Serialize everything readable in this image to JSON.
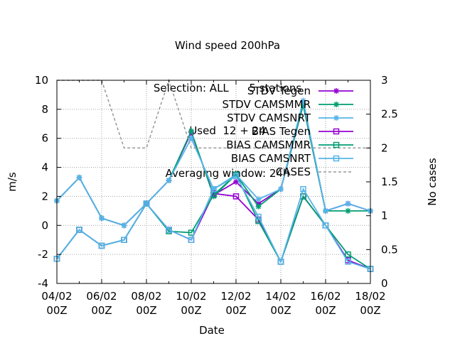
{
  "title_lines": [
    "Wind speed 200hPa",
    "Selection: ALL      5 stations",
    "Used  12 + 24",
    "Averaging window: 24h"
  ],
  "chart_data": {
    "type": "line",
    "xlabel": "Date",
    "ylabel": "m/s",
    "y2label": "No cases",
    "ylim": [
      -4,
      10
    ],
    "y2lim": [
      0,
      3
    ],
    "yticks": [
      -4,
      -2,
      0,
      2,
      4,
      6,
      8,
      10
    ],
    "y2ticks": [
      "0",
      "0.5",
      "1",
      "1.5",
      "2",
      "2.5",
      "3"
    ],
    "xticks": [
      {
        "line1": "04/02",
        "line2": "00Z"
      },
      {
        "line1": "06/02",
        "line2": "00Z"
      },
      {
        "line1": "08/02",
        "line2": "00Z"
      },
      {
        "line1": "10/02",
        "line2": "00Z"
      },
      {
        "line1": "12/02",
        "line2": "00Z"
      },
      {
        "line1": "14/02",
        "line2": "00Z"
      },
      {
        "line1": "16/02",
        "line2": "00Z"
      },
      {
        "line1": "18/02",
        "line2": "00Z"
      }
    ],
    "x": [
      0,
      1,
      2,
      3,
      4,
      5,
      6,
      7,
      8,
      9,
      10,
      11,
      12,
      13,
      14
    ],
    "grid": true,
    "legend_position": "top-right",
    "series": [
      {
        "name": "STDV Tegen",
        "axis": "y1",
        "color": "#9400d3",
        "marker": "star",
        "dash": false,
        "points": [
          [
            0,
            1.7
          ],
          [
            1,
            3.3
          ],
          [
            2,
            0.5
          ],
          [
            3,
            0.0
          ],
          [
            4,
            1.5
          ],
          [
            5,
            3.1
          ],
          [
            6,
            6.4
          ],
          [
            7,
            2.1
          ],
          [
            8,
            3.0
          ],
          [
            9,
            1.5
          ],
          [
            10,
            2.5
          ],
          [
            11,
            8.3
          ],
          [
            12,
            1.0
          ],
          [
            13,
            1.5
          ],
          [
            14,
            1.0
          ]
        ]
      },
      {
        "name": "STDV CAMSMMR",
        "axis": "y1",
        "color": "#009e73",
        "marker": "star",
        "dash": false,
        "points": [
          [
            0,
            1.7
          ],
          [
            1,
            3.3
          ],
          [
            2,
            0.5
          ],
          [
            3,
            0.0
          ],
          [
            4,
            1.5
          ],
          [
            5,
            3.1
          ],
          [
            6,
            6.5
          ],
          [
            7,
            2.0
          ],
          [
            8,
            3.5
          ],
          [
            9,
            1.3
          ],
          [
            10,
            2.5
          ],
          [
            11,
            8.3
          ],
          [
            12,
            1.0
          ],
          [
            13,
            1.0
          ],
          [
            14,
            1.0
          ]
        ]
      },
      {
        "name": "STDV CAMSNRT",
        "axis": "y1",
        "color": "#56b4e9",
        "marker": "star",
        "dash": false,
        "points": [
          [
            0,
            1.7
          ],
          [
            1,
            3.3
          ],
          [
            2,
            0.5
          ],
          [
            3,
            0.0
          ],
          [
            4,
            1.5
          ],
          [
            5,
            3.1
          ],
          [
            6,
            6.0
          ],
          [
            7,
            2.5
          ],
          [
            8,
            3.5
          ],
          [
            9,
            1.8
          ],
          [
            10,
            2.5
          ],
          [
            11,
            8.6
          ],
          [
            12,
            1.0
          ],
          [
            13,
            1.5
          ],
          [
            14,
            1.0
          ]
        ]
      },
      {
        "name": "BIAS Tegen",
        "axis": "y1",
        "color": "#9400d3",
        "marker": "square",
        "dash": false,
        "points": [
          [
            0,
            -2.3
          ],
          [
            1,
            -0.3
          ],
          [
            2,
            -1.4
          ],
          [
            3,
            -1.0
          ],
          [
            4,
            1.5
          ],
          [
            5,
            -0.3
          ],
          [
            6,
            -1.0
          ],
          [
            7,
            2.2
          ],
          [
            8,
            2.0
          ],
          [
            9,
            0.4
          ],
          [
            10,
            -2.5
          ],
          [
            11,
            2.0
          ],
          [
            12,
            0.0
          ],
          [
            13,
            -2.4
          ],
          [
            14,
            -3.0
          ]
        ]
      },
      {
        "name": "BIAS CAMSMMR",
        "axis": "y1",
        "color": "#009e73",
        "marker": "square",
        "dash": false,
        "points": [
          [
            0,
            -2.3
          ],
          [
            1,
            -0.3
          ],
          [
            2,
            -1.4
          ],
          [
            3,
            -1.0
          ],
          [
            4,
            1.5
          ],
          [
            5,
            -0.4
          ],
          [
            6,
            -0.5
          ],
          [
            7,
            2.1
          ],
          [
            8,
            3.5
          ],
          [
            9,
            0.3
          ],
          [
            10,
            -2.5
          ],
          [
            11,
            2.0
          ],
          [
            12,
            0.0
          ],
          [
            13,
            -2.0
          ],
          [
            14,
            -3.0
          ]
        ]
      },
      {
        "name": "BIAS CAMSNRT",
        "axis": "y1",
        "color": "#56b4e9",
        "marker": "square",
        "dash": false,
        "points": [
          [
            0,
            -2.3
          ],
          [
            1,
            -0.3
          ],
          [
            2,
            -1.4
          ],
          [
            3,
            -1.0
          ],
          [
            4,
            1.5
          ],
          [
            5,
            -0.3
          ],
          [
            6,
            -1.0
          ],
          [
            7,
            2.5
          ],
          [
            8,
            3.4
          ],
          [
            9,
            0.6
          ],
          [
            10,
            -2.5
          ],
          [
            11,
            2.5
          ],
          [
            12,
            0.0
          ],
          [
            13,
            -2.5
          ],
          [
            14,
            -3.0
          ]
        ]
      },
      {
        "name": "CASES",
        "axis": "y2",
        "color": "#999999",
        "marker": "none",
        "dash": true,
        "points": [
          [
            0,
            3
          ],
          [
            2,
            3
          ],
          [
            3,
            2
          ],
          [
            4,
            2
          ],
          [
            5,
            3
          ],
          [
            6,
            2
          ],
          [
            14,
            2
          ]
        ]
      }
    ]
  }
}
